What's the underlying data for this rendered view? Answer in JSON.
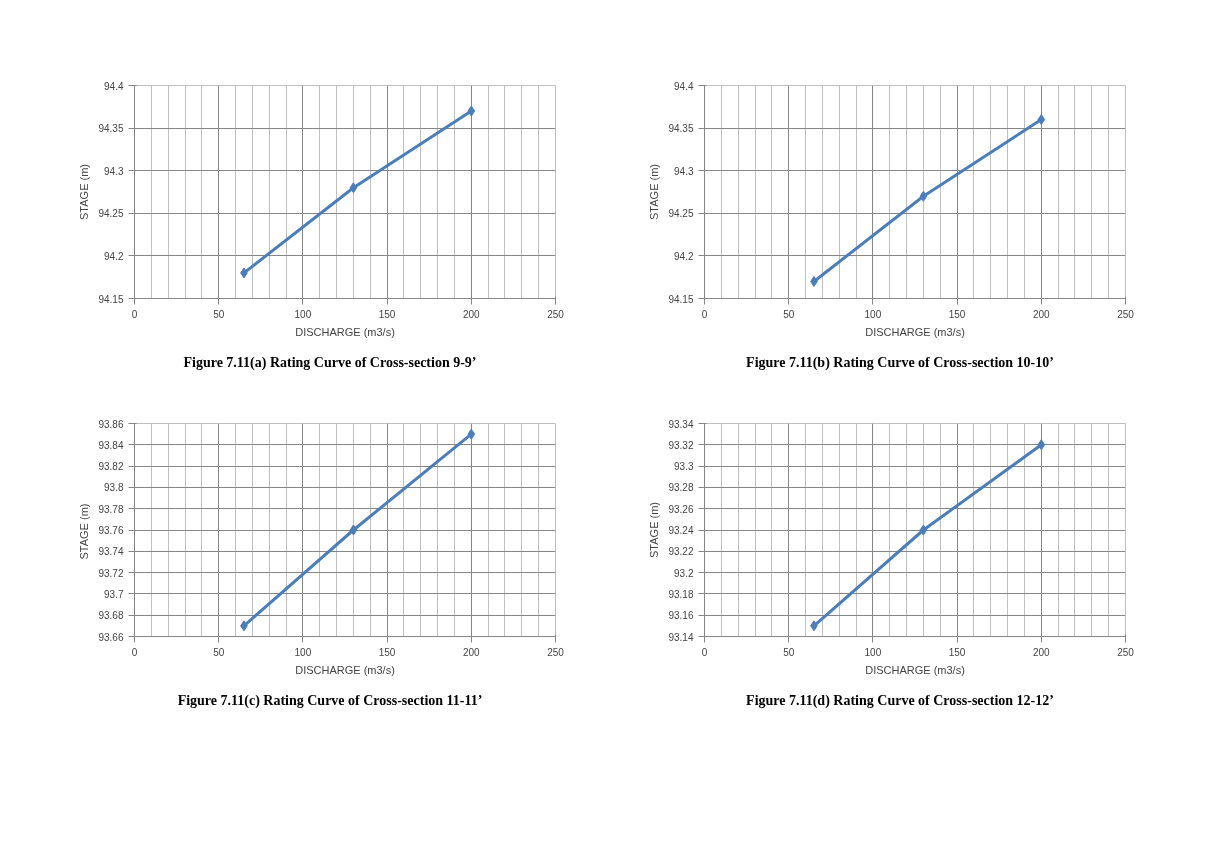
{
  "chart_data": [
    {
      "type": "line",
      "title": "Figure 7.11(a) Rating Curve of Cross-section 9-9’",
      "xlabel": "DISCHARGE (m3/s)",
      "ylabel": "STAGE (m)",
      "x": [
        65,
        130,
        200
      ],
      "series": [
        {
          "color": "#4a7ebb",
          "values": [
            94.18,
            94.28,
            94.37
          ]
        }
      ],
      "xlim": [
        0,
        250
      ],
      "xticks": [
        0,
        50,
        100,
        150,
        200,
        250
      ],
      "ylim": [
        94.15,
        94.4
      ],
      "yticks": [
        94.15,
        94.2,
        94.25,
        94.3,
        94.35,
        94.4
      ],
      "grid": true,
      "marker": "diamond"
    },
    {
      "type": "line",
      "title": "Figure 7.11(b) Rating Curve of Cross-section 10-10’",
      "xlabel": "DISCHARGE (m3/s)",
      "ylabel": "STAGE (m)",
      "x": [
        65,
        130,
        200
      ],
      "series": [
        {
          "color": "#4a7ebb",
          "values": [
            94.17,
            94.27,
            94.36
          ]
        }
      ],
      "xlim": [
        0,
        250
      ],
      "xticks": [
        0,
        50,
        100,
        150,
        200,
        250
      ],
      "ylim": [
        94.15,
        94.4
      ],
      "yticks": [
        94.15,
        94.2,
        94.25,
        94.3,
        94.35,
        94.4
      ],
      "grid": true,
      "marker": "diamond"
    },
    {
      "type": "line",
      "title": "Figure 7.11(c) Rating Curve of Cross-section 11-11’",
      "xlabel": "DISCHARGE (m3/s)",
      "ylabel": "STAGE  (m)",
      "x": [
        65,
        130,
        200
      ],
      "series": [
        {
          "color": "#4a7ebb",
          "values": [
            93.67,
            93.76,
            93.85
          ]
        }
      ],
      "xlim": [
        0,
        250
      ],
      "xticks": [
        0,
        50,
        100,
        150,
        200,
        250
      ],
      "ylim": [
        93.66,
        93.86
      ],
      "yticks": [
        93.66,
        93.68,
        93.7,
        93.72,
        93.74,
        93.76,
        93.78,
        93.8,
        93.82,
        93.84,
        93.86
      ],
      "grid": true,
      "marker": "diamond"
    },
    {
      "type": "line",
      "title": "Figure 7.11(d) Rating Curve of Cross-section 12-12’",
      "xlabel": "DISCHARGE (m3/s)",
      "ylabel": "STAGE (m)",
      "x": [
        65,
        130,
        200
      ],
      "series": [
        {
          "color": "#4a7ebb",
          "values": [
            93.15,
            93.24,
            93.32
          ]
        }
      ],
      "xlim": [
        0,
        250
      ],
      "xticks": [
        0,
        50,
        100,
        150,
        200,
        250
      ],
      "ylim": [
        93.14,
        93.34
      ],
      "yticks": [
        93.14,
        93.16,
        93.18,
        93.2,
        93.22,
        93.24,
        93.26,
        93.28,
        93.3,
        93.32,
        93.34
      ],
      "grid": true,
      "marker": "diamond"
    }
  ]
}
